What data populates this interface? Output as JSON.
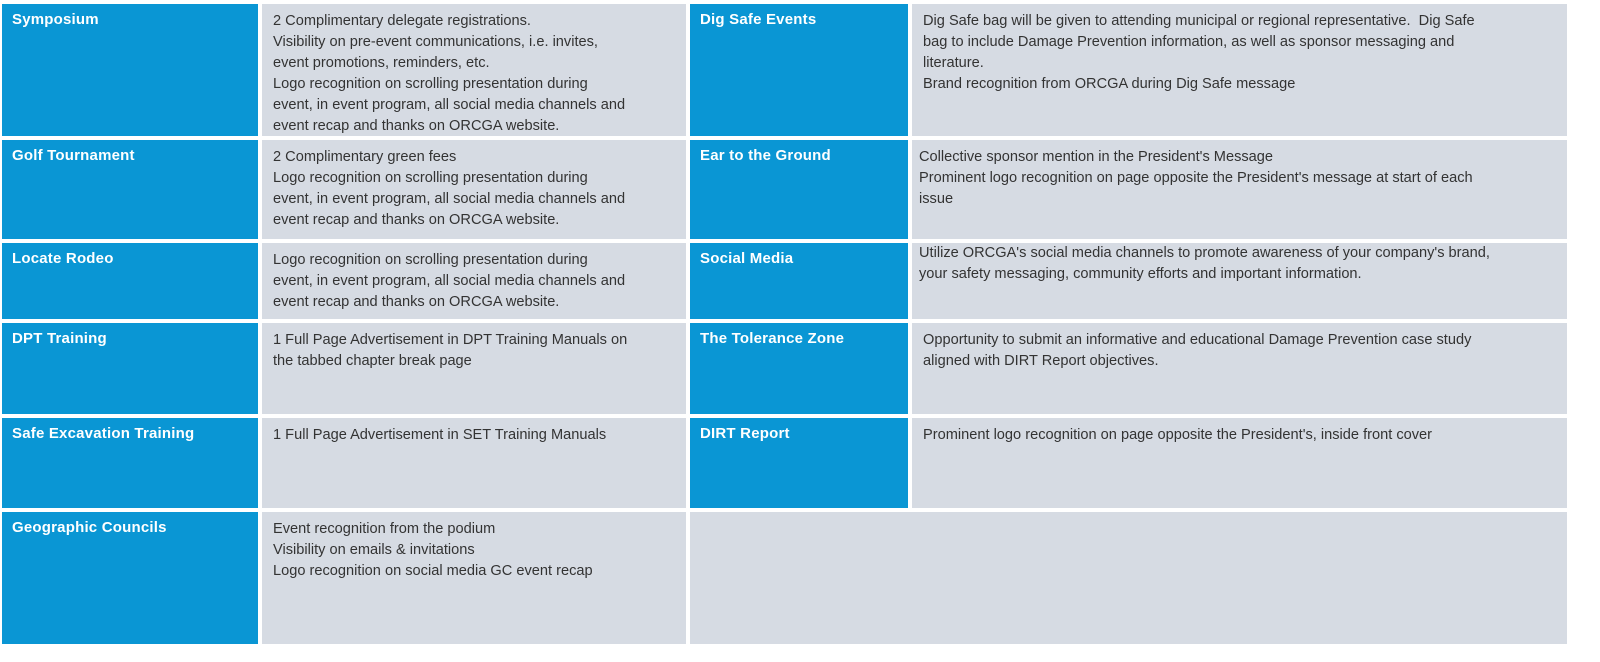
{
  "left_rows": [
    {
      "label": "Symposium",
      "lines": [
        "2 Complimentary delegate registrations.",
        "Visibility on pre-event communications, i.e. invites,",
        "event promotions, reminders, etc.",
        "Logo recognition on scrolling presentation during",
        "event, in event program, all social media channels and",
        "event recap and thanks on ORCGA website."
      ]
    },
    {
      "label": "Golf Tournament",
      "lines": [
        "2 Complimentary green fees",
        "Logo recognition on scrolling presentation during",
        "event, in event program, all social media channels and",
        "event recap and thanks on ORCGA website."
      ]
    },
    {
      "label": "Locate Rodeo",
      "lines": [
        "Logo recognition on scrolling presentation during",
        "event, in event program, all social media channels and",
        "event recap and thanks on ORCGA website."
      ]
    },
    {
      "label": "DPT Training",
      "lines": [
        "1 Full Page Advertisement in DPT Training Manuals on",
        "the tabbed chapter break page"
      ]
    },
    {
      "label": "Safe Excavation Training",
      "lines": [
        "1 Full Page Advertisement in SET Training Manuals"
      ]
    },
    {
      "label": "Geographic Councils",
      "lines": [
        "Event recognition from the podium",
        "Visibility on emails & invitations",
        "Logo recognition on social media GC event recap"
      ]
    }
  ],
  "right_rows": [
    {
      "label": "Dig Safe Events",
      "lines": [
        "Dig Safe bag will be given to attending municipal or regional representative.  Dig Safe",
        "bag to include Damage Prevention information, as well as sponsor messaging and",
        "literature.",
        "Brand recognition from ORCGA during Dig Safe message"
      ]
    },
    {
      "label": "Ear to the Ground",
      "lines": [
        "Collective sponsor mention in the President's Message",
        "Prominent logo recognition on page opposite the President's message at start of each",
        "issue"
      ]
    },
    {
      "label": "Social Media",
      "lines": [
        "Utilize ORCGA's social media channels to promote awareness of your company's brand,",
        "your safety messaging, community efforts and important information."
      ]
    },
    {
      "label": "The Tolerance Zone",
      "lines": [
        "Opportunity to submit an informative and educational Damage Prevention case study",
        "aligned with DIRT Report objectives."
      ]
    },
    {
      "label": "DIRT Report",
      "lines": [
        "Prominent logo recognition on page opposite the President's, inside front cover"
      ]
    }
  ],
  "colors": {
    "label_bg": "#0a96d4",
    "desc_bg": "#d6dbe3",
    "label_text": "#ffffff",
    "desc_text": "#333333"
  }
}
